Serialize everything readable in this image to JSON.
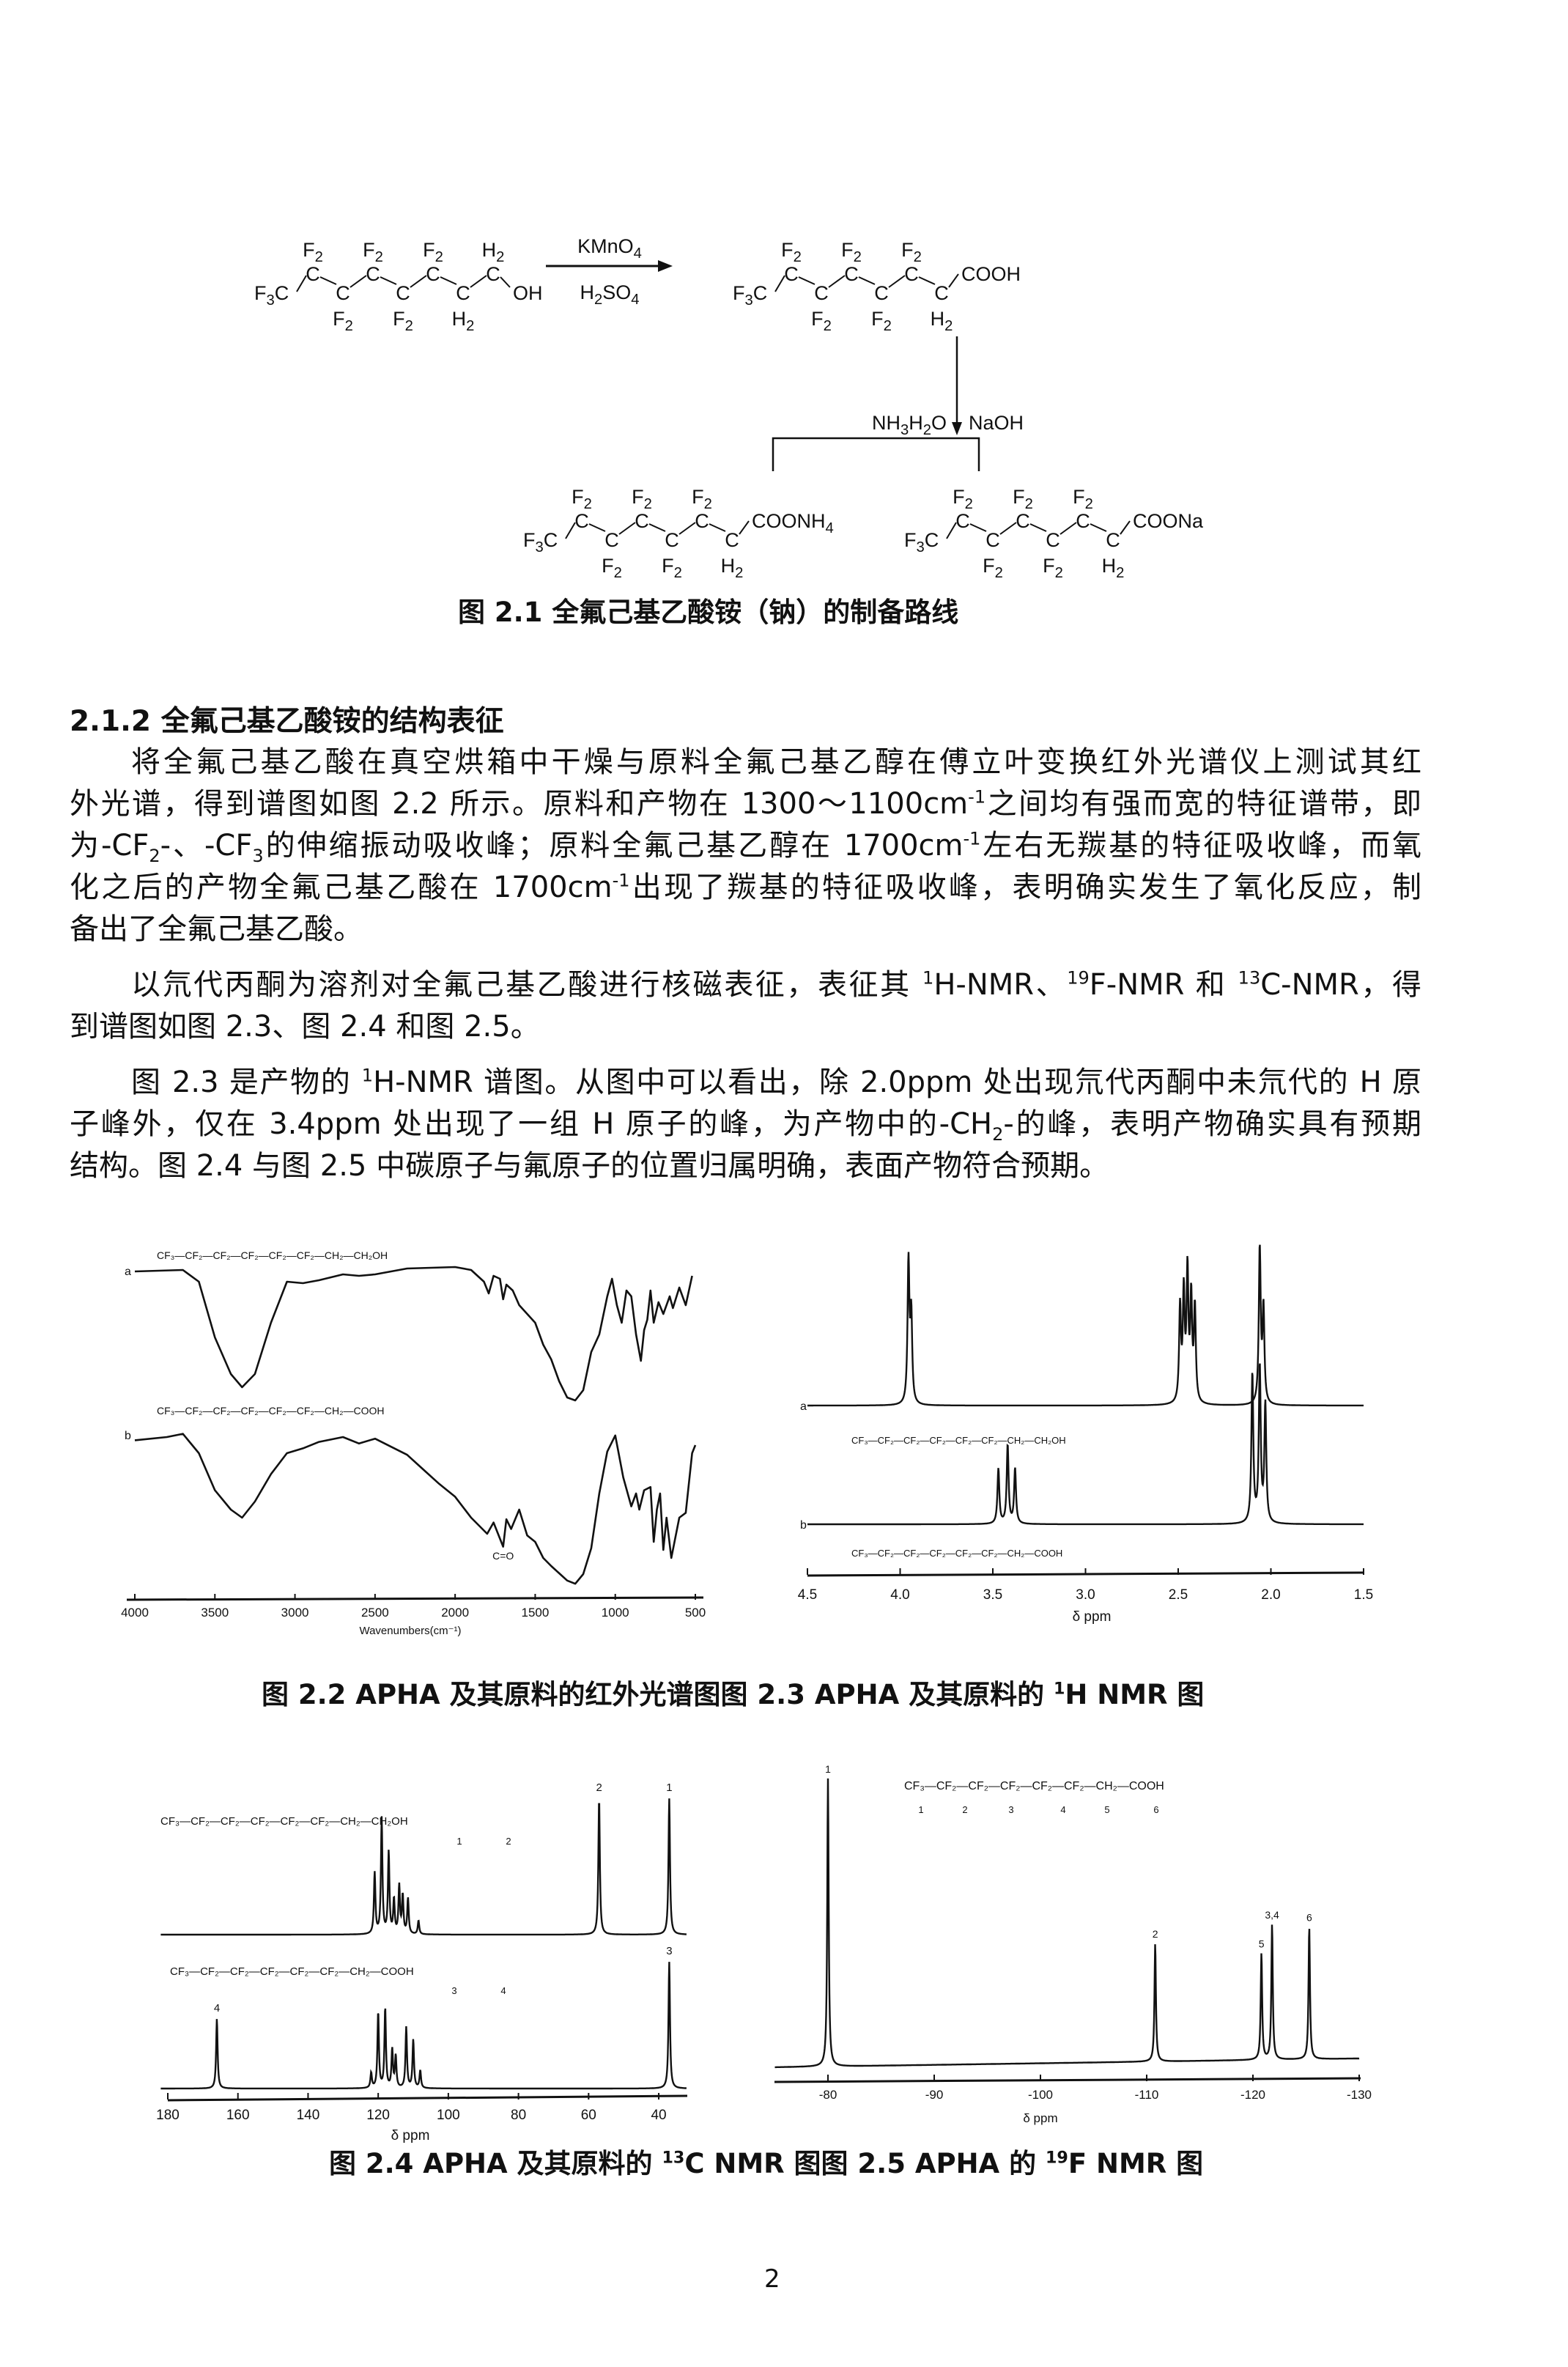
{
  "scheme": {
    "oxidation_reagents": [
      "KMnO4",
      "H2SO4"
    ],
    "neutralization_reagents": [
      "NH3H2O",
      "NaOH"
    ],
    "structures": [
      {
        "id": "reactant-alcohol",
        "start": "F3C",
        "units": [
          "F2",
          "F2",
          "F2",
          "F2",
          "F2",
          "H2",
          "H2"
        ],
        "end": "OH"
      },
      {
        "id": "product-acid",
        "start": "F3C",
        "units": [
          "F2",
          "F2",
          "F2",
          "F2",
          "F2",
          "H2"
        ],
        "end": "COOH"
      },
      {
        "id": "product-ammonium-salt",
        "start": "F3C",
        "units": [
          "F2",
          "F2",
          "F2",
          "F2",
          "F2",
          "H2"
        ],
        "end": "COONH4"
      },
      {
        "id": "product-sodium-salt",
        "start": "F3C",
        "units": [
          "F2",
          "F2",
          "F2",
          "F2",
          "F2",
          "H2"
        ],
        "end": "COONa"
      }
    ]
  },
  "captions": {
    "fig2_1": [
      {
        "t": "图 2.1 全氟己基乙酸铵（钠）的制备路线"
      }
    ],
    "fig2_2_2_3": [
      {
        "t": "图 2.2   APHA 及其原料的红外光谱图图 2.3   APHA 及其原料的 "
      },
      {
        "sup": "1"
      },
      {
        "t": "H NMR 图"
      }
    ],
    "fig2_4_2_5": [
      {
        "t": "图 2.4   APHA 及其原料的 "
      },
      {
        "sup": "13"
      },
      {
        "t": "C NMR 图图 2.5   APHA 的 "
      },
      {
        "sup": "19"
      },
      {
        "t": "F NMR 图"
      }
    ]
  },
  "section": {
    "heading": "2.1.2 全氟己基乙酸铵的结构表征",
    "paragraphs": [
      [
        [
          {
            "t": "将全氟己基乙酸在真空烘箱中干燥与原料全氟己基乙醇在傅立叶变换红外光谱仪上测试其红"
          }
        ],
        [
          {
            "t": "外光谱，得到谱图如图 2.2 所示。原料和产物在 1300～1100cm"
          },
          {
            "sup": "-1"
          },
          {
            "t": "之间均有强而宽的特征谱带，即"
          }
        ],
        [
          {
            "t": "为-CF"
          },
          {
            "sub": "2"
          },
          {
            "t": "-、-CF"
          },
          {
            "sub": "3"
          },
          {
            "t": "的伸缩振动吸收峰；原料全氟己基乙醇在 1700cm"
          },
          {
            "sup": "-1"
          },
          {
            "t": "左右无羰基的特征吸收峰，而氧"
          }
        ],
        [
          {
            "t": "化之后的产物全氟己基乙酸在 1700cm"
          },
          {
            "sup": "-1"
          },
          {
            "t": "出现了羰基的特征吸收峰，表明确实发生了氧化反应，制"
          }
        ],
        [
          {
            "t": "备出了全氟己基乙酸。"
          }
        ]
      ],
      [
        [
          {
            "t": "以氘代丙酮为溶剂对全氟己基乙酸进行核磁表征，表征其 "
          },
          {
            "sup": "1"
          },
          {
            "t": "H-NMR、"
          },
          {
            "sup": "19"
          },
          {
            "t": "F-NMR 和 "
          },
          {
            "sup": "13"
          },
          {
            "t": "C-NMR，得"
          }
        ],
        [
          {
            "t": "到谱图如图 2.3、图 2.4 和图 2.5。"
          }
        ]
      ],
      [
        [
          {
            "t": "图 2.3 是产物的 "
          },
          {
            "sup": "1"
          },
          {
            "t": "H-NMR 谱图。从图中可以看出，除 2.0ppm 处出现氘代丙酮中未氘代的 H 原"
          }
        ],
        [
          {
            "t": "子峰外，仅在 3.4ppm 处出现了一组 H 原子的峰，为产物中的-CH"
          },
          {
            "sub": "2"
          },
          {
            "t": "-的峰，表明产物确实具有预期"
          }
        ],
        [
          {
            "t": "结构。图 2.4 与图 2.5 中碳原子与氟原子的位置归属明确，表面产物符合预期。"
          }
        ]
      ]
    ]
  },
  "chart_data": [
    {
      "id": "fig2_2_ir",
      "type": "line",
      "xlabel": "Wavenumbers(cm⁻¹)",
      "xlim": [
        4000,
        500
      ],
      "xticks": [
        "4000",
        "3500",
        "3000",
        "2500",
        "2000",
        "1500",
        "1000",
        "500"
      ],
      "yaxis": "transmittance (relative, unlabeled)",
      "grid": false,
      "annotations": [
        {
          "text": "C=O",
          "x": 1700,
          "series": "b"
        }
      ],
      "series": [
        {
          "name": "a",
          "formula": "CF₃—CF₂—CF₂—CF₂—CF₂—CF₂—CH₂—CH₂OH",
          "points": [
            [
              4000,
              95
            ],
            [
              3700,
              96
            ],
            [
              3600,
              88
            ],
            [
              3500,
              50
            ],
            [
              3400,
              25
            ],
            [
              3330,
              16
            ],
            [
              3250,
              25
            ],
            [
              3150,
              60
            ],
            [
              3050,
              88
            ],
            [
              2950,
              87
            ],
            [
              2850,
              89
            ],
            [
              2700,
              93
            ],
            [
              2600,
              92
            ],
            [
              2500,
              93
            ],
            [
              2300,
              97
            ],
            [
              2000,
              98
            ],
            [
              1900,
              96
            ],
            [
              1820,
              88
            ],
            [
              1790,
              80
            ],
            [
              1760,
              92
            ],
            [
              1720,
              90
            ],
            [
              1700,
              76
            ],
            [
              1680,
              86
            ],
            [
              1640,
              82
            ],
            [
              1600,
              72
            ],
            [
              1550,
              66
            ],
            [
              1500,
              60
            ],
            [
              1450,
              45
            ],
            [
              1400,
              35
            ],
            [
              1350,
              20
            ],
            [
              1300,
              9
            ],
            [
              1250,
              7
            ],
            [
              1200,
              14
            ],
            [
              1150,
              40
            ],
            [
              1100,
              52
            ],
            [
              1050,
              78
            ],
            [
              1020,
              90
            ],
            [
              990,
              72
            ],
            [
              960,
              60
            ],
            [
              930,
              82
            ],
            [
              900,
              78
            ],
            [
              870,
              52
            ],
            [
              840,
              34
            ],
            [
              820,
              55
            ],
            [
              800,
              62
            ],
            [
              780,
              82
            ],
            [
              760,
              60
            ],
            [
              730,
              74
            ],
            [
              700,
              66
            ],
            [
              660,
              78
            ],
            [
              640,
              70
            ],
            [
              600,
              84
            ],
            [
              560,
              72
            ],
            [
              520,
              92
            ]
          ]
        },
        {
          "name": "b",
          "formula": "CF₃—CF₂—CF₂—CF₂—CF₂—CF₂—CH₂—COOH",
          "points": [
            [
              4000,
              93
            ],
            [
              3800,
              95
            ],
            [
              3700,
              97
            ],
            [
              3600,
              85
            ],
            [
              3500,
              62
            ],
            [
              3400,
              50
            ],
            [
              3330,
              45
            ],
            [
              3250,
              55
            ],
            [
              3150,
              72
            ],
            [
              3050,
              85
            ],
            [
              2950,
              88
            ],
            [
              2850,
              92
            ],
            [
              2700,
              95
            ],
            [
              2600,
              91
            ],
            [
              2500,
              94
            ],
            [
              2400,
              89
            ],
            [
              2300,
              84
            ],
            [
              2200,
              75
            ],
            [
              2100,
              66
            ],
            [
              2000,
              58
            ],
            [
              1900,
              45
            ],
            [
              1800,
              35
            ],
            [
              1760,
              42
            ],
            [
              1700,
              27
            ],
            [
              1680,
              44
            ],
            [
              1650,
              38
            ],
            [
              1600,
              50
            ],
            [
              1550,
              34
            ],
            [
              1500,
              30
            ],
            [
              1450,
              20
            ],
            [
              1400,
              15
            ],
            [
              1300,
              6
            ],
            [
              1250,
              4
            ],
            [
              1200,
              10
            ],
            [
              1150,
              26
            ],
            [
              1100,
              60
            ],
            [
              1050,
              86
            ],
            [
              1000,
              96
            ],
            [
              950,
              70
            ],
            [
              900,
              52
            ],
            [
              870,
              60
            ],
            [
              850,
              50
            ],
            [
              820,
              62
            ],
            [
              780,
              64
            ],
            [
              760,
              30
            ],
            [
              740,
              50
            ],
            [
              720,
              60
            ],
            [
              700,
              25
            ],
            [
              680,
              45
            ],
            [
              650,
              20
            ],
            [
              600,
              45
            ],
            [
              560,
              48
            ],
            [
              520,
              85
            ],
            [
              500,
              90
            ]
          ]
        }
      ]
    },
    {
      "id": "fig2_3_1h_nmr",
      "type": "line",
      "xlabel": "δ ppm",
      "xlim": [
        4.5,
        1.5
      ],
      "xticks": [
        "4.5",
        "4.0",
        "3.5",
        "3.0",
        "2.5",
        "2.0",
        "1.5"
      ],
      "grid": false,
      "series": [
        {
          "name": "a",
          "formula": "CF₃—CF₂—CF₂—CF₂—CF₂—CF₂—CH₂—CH₂OH",
          "peaks": [
            [
              3.955,
              0.9
            ],
            [
              3.94,
              0.55
            ],
            [
              2.49,
              0.6
            ],
            [
              2.47,
              0.68
            ],
            [
              2.45,
              0.82
            ],
            [
              2.43,
              0.65
            ],
            [
              2.41,
              0.6
            ],
            [
              2.06,
              1.0
            ],
            [
              2.04,
              0.6
            ]
          ]
        },
        {
          "name": "b",
          "formula": "CF₃—CF₂—CF₂—CF₂—CF₂—CF₂—CH₂—COOH",
          "peaks": [
            [
              3.47,
              0.35
            ],
            [
              3.42,
              0.5
            ],
            [
              3.38,
              0.35
            ],
            [
              2.1,
              0.95
            ],
            [
              2.06,
              1.0
            ],
            [
              2.03,
              0.75
            ]
          ]
        }
      ]
    },
    {
      "id": "fig2_4_13c_nmr",
      "type": "line",
      "xlabel": "δ ppm",
      "xlim": [
        180,
        32
      ],
      "xticks": [
        "180",
        "160",
        "140",
        "120",
        "100",
        "80",
        "60",
        "40"
      ],
      "grid": false,
      "series": [
        {
          "name": "alcohol",
          "formula": "CF₃—CF₂—CF₂—CF₂—CF₂—CF₂—CH₂—CH₂OH",
          "atom_numbers": [
            "1",
            "2"
          ],
          "peaks": [
            {
              "ppm": 121,
              "intensity": 0.45
            },
            {
              "ppm": 119,
              "intensity": 0.85
            },
            {
              "ppm": 117,
              "intensity": 0.6
            },
            {
              "ppm": 115.5,
              "intensity": 0.25
            },
            {
              "ppm": 114,
              "intensity": 0.35
            },
            {
              "ppm": 113,
              "intensity": 0.28
            },
            {
              "ppm": 111.5,
              "intensity": 0.26
            },
            {
              "ppm": 108.5,
              "intensity": 0.1
            },
            {
              "ppm": 57,
              "intensity": 1.0,
              "label": "2"
            },
            {
              "ppm": 37,
              "intensity": 1.0,
              "label": "1"
            }
          ]
        },
        {
          "name": "acid",
          "formula": "CF₃—CF₂—CF₂—CF₂—CF₂—CF₂—CH₂—COOH",
          "atom_numbers": [
            "3",
            "4"
          ],
          "peaks": [
            {
              "ppm": 166,
              "intensity": 0.55,
              "label": "4"
            },
            {
              "ppm": 122,
              "intensity": 0.12
            },
            {
              "ppm": 120,
              "intensity": 0.6
            },
            {
              "ppm": 118,
              "intensity": 0.63
            },
            {
              "ppm": 116,
              "intensity": 0.3
            },
            {
              "ppm": 115,
              "intensity": 0.25
            },
            {
              "ppm": 112,
              "intensity": 0.48
            },
            {
              "ppm": 110,
              "intensity": 0.38
            },
            {
              "ppm": 108,
              "intensity": 0.14
            },
            {
              "ppm": 37,
              "intensity": 1.0,
              "label": "3"
            }
          ]
        }
      ]
    },
    {
      "id": "fig2_5_19f_nmr",
      "type": "line",
      "xlabel": "δ ppm",
      "xlim": [
        -75,
        -130
      ],
      "xticks": [
        "-80",
        "-90",
        "-100",
        "-110",
        "-120",
        "-130"
      ],
      "grid": false,
      "formula": "CF₃—CF₂—CF₂—CF₂—CF₂—CF₂—CH₂—COOH",
      "atom_numbers": [
        "1",
        "2",
        "3",
        "4",
        "5",
        "6"
      ],
      "peaks": [
        {
          "ppm": -80,
          "intensity": 1.0,
          "label": "1"
        },
        {
          "ppm": -110.8,
          "intensity": 0.41,
          "label": "2"
        },
        {
          "ppm": -120.8,
          "intensity": 0.37,
          "label": "5"
        },
        {
          "ppm": -121.8,
          "intensity": 0.47,
          "label": "3,4"
        },
        {
          "ppm": -125.3,
          "intensity": 0.46,
          "label": "6"
        }
      ]
    }
  ],
  "page_number": "2"
}
